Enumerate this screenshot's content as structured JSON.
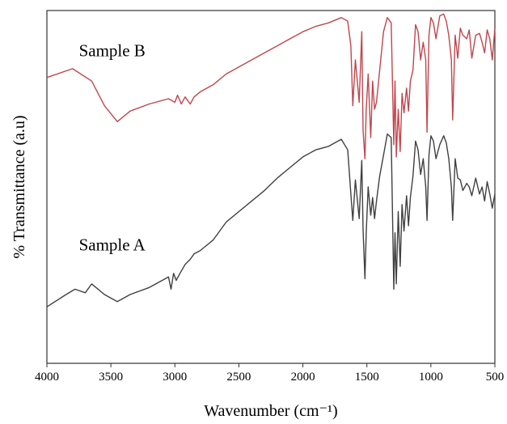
{
  "chart_data": {
    "type": "line",
    "title": "",
    "xlabel": "Wavenumber (cm⁻¹)",
    "ylabel": "% Transmittance (a.u)",
    "xlim": [
      4000,
      500
    ],
    "x_reversed": true,
    "ylim": [
      0,
      100
    ],
    "x_ticks": [
      4000,
      3500,
      3000,
      2500,
      2000,
      1500,
      1000,
      500
    ],
    "grid": false,
    "legend": "none",
    "series": [
      {
        "name": "Sample B",
        "color": "#c0464e",
        "x": [
          4000,
          3800,
          3650,
          3550,
          3450,
          3350,
          3200,
          3050,
          3000,
          2980,
          2950,
          2920,
          2880,
          2850,
          2800,
          2700,
          2600,
          2500,
          2400,
          2300,
          2200,
          2100,
          2000,
          1900,
          1800,
          1700,
          1650,
          1625,
          1610,
          1590,
          1560,
          1540,
          1530,
          1515,
          1505,
          1490,
          1470,
          1455,
          1440,
          1425,
          1400,
          1370,
          1340,
          1310,
          1290,
          1280,
          1270,
          1255,
          1240,
          1225,
          1210,
          1190,
          1175,
          1160,
          1140,
          1120,
          1100,
          1080,
          1060,
          1040,
          1030,
          1015,
          1000,
          980,
          960,
          930,
          900,
          880,
          860,
          840,
          830,
          810,
          790,
          770,
          750,
          720,
          700,
          680,
          650,
          620,
          600,
          580,
          560,
          540,
          520,
          500
        ],
        "y": [
          81.0,
          83.5,
          80.0,
          73.0,
          68.5,
          71.5,
          73.5,
          75.0,
          74.0,
          76.0,
          73.5,
          75.5,
          73.5,
          75.5,
          77.0,
          79.0,
          82.0,
          84.0,
          86.0,
          88.0,
          90.0,
          92.0,
          94.0,
          95.5,
          96.5,
          98.0,
          97.0,
          90.0,
          73.0,
          86.0,
          74.0,
          94.0,
          66.0,
          58.0,
          72.0,
          82.0,
          64.0,
          80.0,
          72.0,
          74.0,
          83.0,
          94.0,
          98.0,
          96.5,
          62.0,
          80.0,
          58.5,
          72.0,
          60.0,
          76.5,
          71.0,
          78.0,
          71.5,
          80.0,
          83.0,
          96.0,
          94.0,
          86.0,
          91.0,
          86.0,
          65.5,
          93.0,
          98.0,
          96.5,
          92.0,
          98.5,
          99.0,
          97.0,
          93.0,
          86.0,
          69.0,
          93.0,
          86.5,
          95.0,
          93.0,
          92.0,
          94.5,
          86.5,
          93.0,
          93.5,
          91.0,
          88.0,
          94.5,
          92.0,
          86.0,
          95.0
        ]
      },
      {
        "name": "Sample A",
        "color": "#404040",
        "x": [
          4000,
          3850,
          3780,
          3700,
          3650,
          3600,
          3550,
          3450,
          3350,
          3200,
          3050,
          3030,
          3010,
          2990,
          2960,
          2920,
          2880,
          2850,
          2800,
          2700,
          2600,
          2500,
          2400,
          2300,
          2200,
          2100,
          2000,
          1900,
          1800,
          1700,
          1650,
          1625,
          1610,
          1590,
          1560,
          1540,
          1530,
          1515,
          1505,
          1490,
          1470,
          1455,
          1440,
          1425,
          1400,
          1370,
          1340,
          1310,
          1290,
          1280,
          1270,
          1255,
          1240,
          1225,
          1210,
          1190,
          1175,
          1160,
          1140,
          1120,
          1100,
          1080,
          1060,
          1040,
          1030,
          1015,
          1000,
          980,
          960,
          930,
          900,
          880,
          860,
          840,
          830,
          810,
          790,
          770,
          750,
          720,
          700,
          680,
          650,
          620,
          600,
          580,
          560,
          540,
          520,
          500
        ],
        "y": [
          16.0,
          19.5,
          21.0,
          20.0,
          22.5,
          21.0,
          19.5,
          17.5,
          19.5,
          21.5,
          24.5,
          21.0,
          25.5,
          23.5,
          25.5,
          28.0,
          29.5,
          31.0,
          32.0,
          35.0,
          40.0,
          43.0,
          46.0,
          49.0,
          52.5,
          55.5,
          58.5,
          60.5,
          61.5,
          63.5,
          60.5,
          48.0,
          40.5,
          52.0,
          41.0,
          57.5,
          38.0,
          24.0,
          37.0,
          50.0,
          42.0,
          47.0,
          41.0,
          46.0,
          53.0,
          59.0,
          65.0,
          64.0,
          21.0,
          37.0,
          22.5,
          43.0,
          27.5,
          45.0,
          37.5,
          47.5,
          39.0,
          47.0,
          53.0,
          63.0,
          60.5,
          53.5,
          58.0,
          50.0,
          40.5,
          59.0,
          64.5,
          63.0,
          58.0,
          62.0,
          64.5,
          62.5,
          58.0,
          50.0,
          40.5,
          58.0,
          52.5,
          52.0,
          49.0,
          51.0,
          50.0,
          47.5,
          52.5,
          48.0,
          50.0,
          46.0,
          51.5,
          48.0,
          44.0,
          48.0
        ]
      }
    ],
    "annotations": [
      {
        "id": "sample-b",
        "text": "Sample B",
        "x": 3750,
        "y": 87
      },
      {
        "id": "sample-a",
        "text": "Sample A",
        "x": 3750,
        "y": 32
      }
    ]
  }
}
